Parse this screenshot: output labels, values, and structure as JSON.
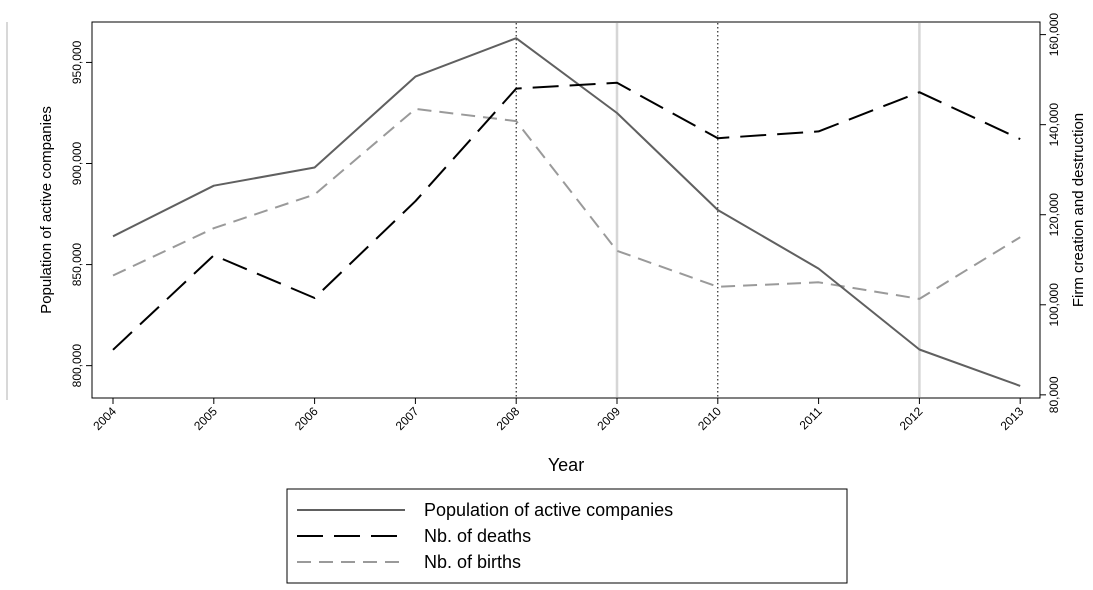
{
  "chart_data": {
    "type": "line",
    "x_label": "Year",
    "y_label_left": "Population of active companies",
    "y_label_right": "Firm creation and destruction",
    "categories": [
      "2004",
      "2005",
      "2006",
      "2007",
      "2008",
      "2009",
      "2010",
      "2011",
      "2012",
      "2013"
    ],
    "y_left_range": [
      784000,
      970000
    ],
    "y_left_ticks": [
      800000,
      850000,
      900000,
      950000
    ],
    "y_left_tick_labels": [
      "800,000",
      "850,000",
      "900,000",
      "950,000"
    ],
    "y_right_range": [
      79300,
      162800
    ],
    "y_right_ticks": [
      80000,
      100000,
      120000,
      140000,
      160000
    ],
    "y_right_tick_labels": [
      "80,000",
      "100,000",
      "120,000",
      "140,000",
      "160,000"
    ],
    "vertical_dotted_at": [
      "2008",
      "2010"
    ],
    "vertical_gray_at": [
      "2009",
      "2012"
    ],
    "series": [
      {
        "name": "Population of active companies",
        "axis": "left",
        "color": "#606060",
        "style": "solid",
        "values": [
          864000,
          889000,
          898000,
          943000,
          962000,
          925000,
          877000,
          848000,
          808000,
          790000
        ]
      },
      {
        "name": "Nb. of deaths",
        "axis": "right",
        "color": "#000000",
        "style": "longdash",
        "values": [
          90000,
          111000,
          101500,
          123000,
          148000,
          149300,
          137000,
          138500,
          147200,
          136800
        ]
      },
      {
        "name": "Nb. of births",
        "axis": "right",
        "color": "#9a9a9a",
        "style": "dash",
        "values": [
          106500,
          117000,
          124500,
          143500,
          140800,
          112000,
          104000,
          105000,
          101300,
          115000
        ]
      }
    ]
  }
}
